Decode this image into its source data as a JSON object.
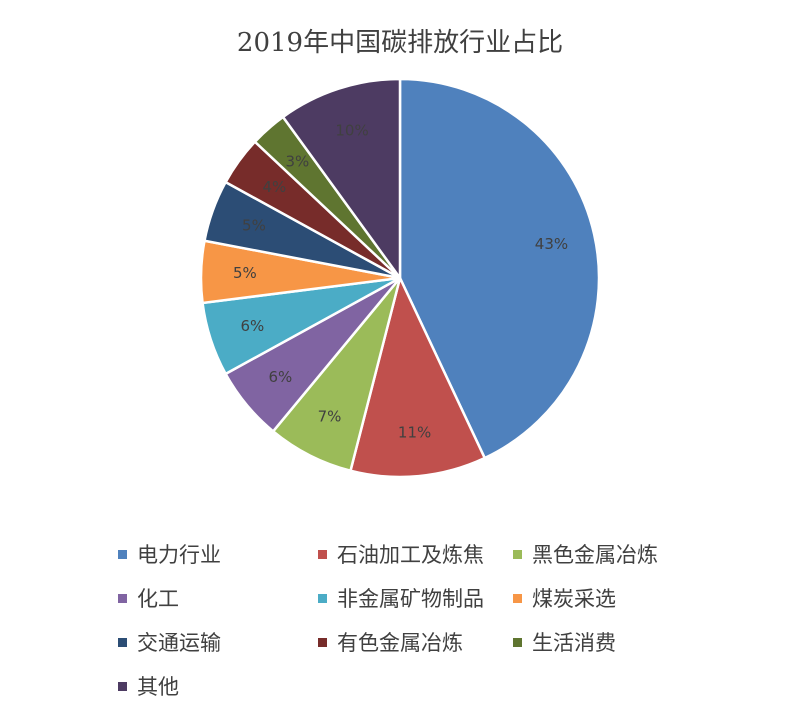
{
  "chart_data": {
    "type": "pie",
    "title": "2019年中国碳排放行业占比",
    "categories": [
      "电力行业",
      "石油加工及炼焦",
      "黑色金属冶炼",
      "化工",
      "非金属矿物制品",
      "煤炭采选",
      "交通运输",
      "有色金属冶炼",
      "生活消费",
      "其他"
    ],
    "values": [
      43,
      11,
      7,
      6,
      6,
      5,
      5,
      4,
      3,
      10
    ],
    "value_labels": [
      "43%",
      "11%",
      "7%",
      "6%",
      "6%",
      "5%",
      "5%",
      "4%",
      "3%",
      "10%"
    ],
    "colors": [
      "#4f81bd",
      "#c0504d",
      "#9bbb59",
      "#8064a2",
      "#4bacc6",
      "#f79646",
      "#2c4d75",
      "#772c2a",
      "#5f7530",
      "#4d3b62"
    ],
    "legend_position": "bottom"
  }
}
